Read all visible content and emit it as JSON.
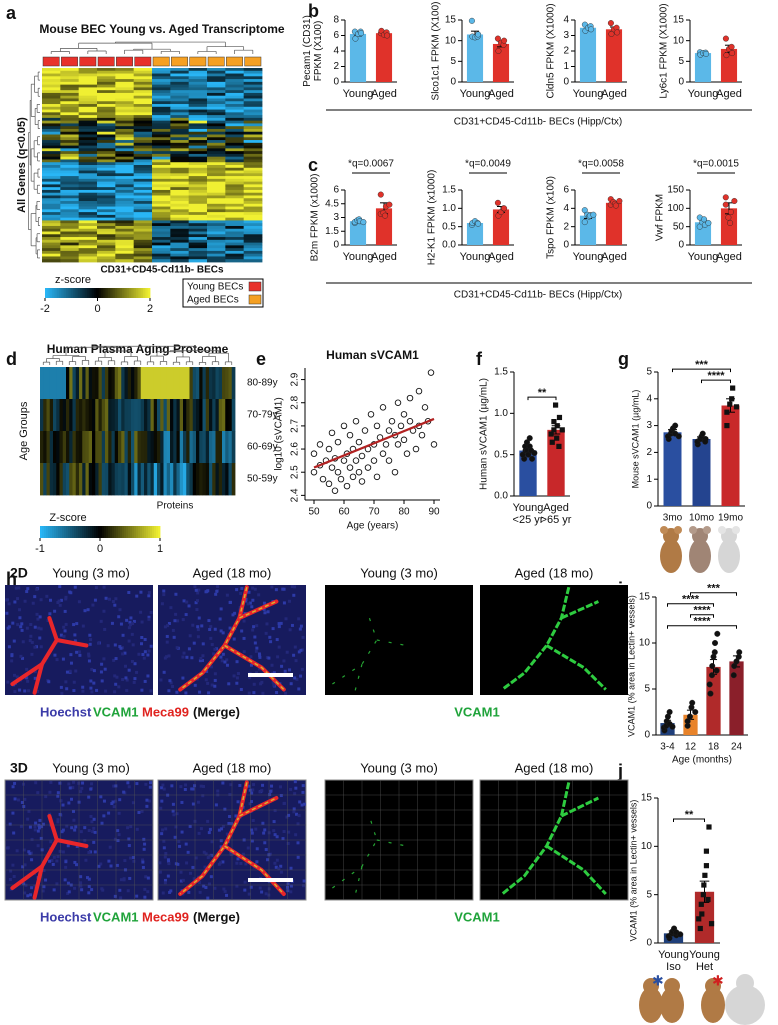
{
  "panel_labels": [
    "a",
    "b",
    "c",
    "d",
    "e",
    "f",
    "g",
    "h",
    "i",
    "j"
  ],
  "shared_xlabels": [
    "CD31+CD45-Cd11b- BECs (Hipp/Ctx)",
    "CD31+CD45-Cd11b- BECs (Hipp/Ctx)"
  ],
  "chart_data": [
    {
      "type": "heatmap",
      "title": "Mouse BEC Young vs. Aged Transcriptome",
      "ylabel": "All Genes (q<0.05)",
      "xlabel": "CD31+CD45-Cd11b- BECs",
      "colorbar_label": "z-score",
      "zlim": [
        -2,
        2
      ],
      "colorbar_ticks": [
        -2,
        0,
        2
      ],
      "colors": [
        "#29b6f6",
        "#000000",
        "#f0f032"
      ],
      "legend": [
        {
          "name": "Young BECs",
          "color": "#e8312a"
        },
        {
          "name": "Aged BECs",
          "color": "#f5a023"
        }
      ]
    },
    {
      "type": "bar",
      "ylabel": [
        "Pecam1 (CD31)",
        "FPKM (X100)"
      ],
      "categories": [
        "Young",
        "Aged"
      ],
      "colors": [
        "#5bb8e8",
        "#e0322a"
      ],
      "values": [
        6.2,
        6.3
      ],
      "errors": [
        0.25,
        0.2
      ],
      "points": [
        [
          6.5,
          5.6,
          6.2,
          6.5,
          6.3
        ],
        [
          6.3,
          6.6,
          6.1,
          6.4,
          6.0
        ]
      ],
      "ylim": [
        0,
        8
      ],
      "yticks": [
        0,
        2,
        4,
        6,
        8
      ]
    },
    {
      "type": "bar",
      "ylabel": "Slco1c1 FPKM (X100)",
      "categories": [
        "Young",
        "Aged"
      ],
      "colors": [
        "#5bb8e8",
        "#e0322a"
      ],
      "values": [
        11.5,
        9.2
      ],
      "errors": [
        0.8,
        0.7
      ],
      "points": [
        [
          14.8,
          11,
          10.8,
          11,
          11.5
        ],
        [
          10.5,
          7.5,
          9.5,
          9,
          10
        ]
      ],
      "ylim": [
        0,
        15
      ],
      "yticks": [
        0,
        5,
        10,
        15
      ]
    },
    {
      "type": "bar",
      "ylabel": "Cldn5 FPKM (X1000)",
      "categories": [
        "Young",
        "Aged"
      ],
      "colors": [
        "#5bb8e8",
        "#e0322a"
      ],
      "values": [
        3.5,
        3.4
      ],
      "errors": [
        0.12,
        0.15
      ],
      "points": [
        [
          3.7,
          3.3,
          3.5,
          3.6,
          3.4
        ],
        [
          3.8,
          3.1,
          3.4,
          3.5,
          3.2
        ]
      ],
      "ylim": [
        0,
        4
      ],
      "yticks": [
        0,
        1,
        2,
        3,
        4
      ]
    },
    {
      "type": "bar",
      "ylabel": "Ly6c1 FPKM (X1000)",
      "categories": [
        "Young",
        "Aged"
      ],
      "colors": [
        "#5bb8e8",
        "#e0322a"
      ],
      "values": [
        7,
        8
      ],
      "errors": [
        0.3,
        0.9
      ],
      "points": [
        [
          7.2,
          6.6,
          7,
          7.1,
          6.8
        ],
        [
          10.5,
          6.5,
          8,
          8.5,
          7
        ]
      ],
      "ylim": [
        0,
        15
      ],
      "yticks": [
        0,
        5,
        10,
        15
      ]
    },
    {
      "type": "bar",
      "ylabel": "B2m FPKM (x1000)",
      "annotation": "*q=0.0067",
      "categories": [
        "Young",
        "Aged"
      ],
      "colors": [
        "#5bb8e8",
        "#e0322a"
      ],
      "values": [
        2.6,
        4.0
      ],
      "errors": [
        0.15,
        0.6
      ],
      "points": [
        [
          2.4,
          2.5,
          2.7,
          2.8,
          2.6,
          2.5
        ],
        [
          5.5,
          3.4,
          3.5,
          3.2,
          4.2,
          4.4
        ]
      ],
      "ylim": [
        0,
        6
      ],
      "yticks": [
        0,
        1.5,
        3,
        4.5,
        6
      ]
    },
    {
      "type": "bar",
      "ylabel": "H2-K1 FPKM (x1000)",
      "annotation": "*q=0.0049",
      "categories": [
        "Young",
        "Aged"
      ],
      "colors": [
        "#5bb8e8",
        "#e0322a"
      ],
      "values": [
        0.6,
        0.97
      ],
      "errors": [
        0.03,
        0.08
      ],
      "points": [
        [
          0.55,
          0.6,
          0.65,
          0.6,
          0.58
        ],
        [
          1.15,
          0.8,
          0.9,
          1.0,
          1.0
        ]
      ],
      "ylim": [
        0,
        1.5
      ],
      "yticks": [
        {
          "value": 0,
          "label": "0.0"
        },
        {
          "value": 0.5,
          "label": "0.5"
        },
        {
          "value": 1,
          "label": "1.0"
        },
        {
          "value": 1.5,
          "label": "1.5"
        }
      ]
    },
    {
      "type": "bar",
      "ylabel": "Tspo FPKM (x100)",
      "annotation": "*q=0.0058",
      "categories": [
        "Young",
        "Aged"
      ],
      "colors": [
        "#5bb8e8",
        "#e0322a"
      ],
      "values": [
        3.2,
        4.6
      ],
      "errors": [
        0.3,
        0.15
      ],
      "points": [
        [
          3.8,
          2.5,
          3.3,
          3.1,
          3.2,
          3.3
        ],
        [
          5.0,
          4.4,
          4.7,
          4.5,
          4.3,
          4.8
        ]
      ],
      "ylim": [
        0,
        6
      ],
      "yticks": [
        0,
        2,
        4,
        6
      ]
    },
    {
      "type": "bar",
      "ylabel": "Vwf FPKM",
      "annotation": "*q=0.0015",
      "categories": [
        "Young",
        "Aged"
      ],
      "colors": [
        "#5bb8e8",
        "#e0322a"
      ],
      "values": [
        62,
        100
      ],
      "errors": [
        6,
        15
      ],
      "points": [
        [
          75,
          50,
          62,
          70,
          55,
          60
        ],
        [
          130,
          110,
          75,
          60,
          90,
          120
        ]
      ],
      "ylim": [
        0,
        150
      ],
      "yticks": [
        0,
        50,
        100,
        150
      ]
    },
    {
      "type": "heatmap",
      "title": "Human Plasma Aging Proteome",
      "ylabel": "Age Groups",
      "xlabel": "Proteins",
      "rows": [
        "80-89y",
        "70-79y",
        "60-69y",
        "50-59y"
      ],
      "colorbar_label": "Z-score",
      "zlim": [
        -1,
        1
      ],
      "colorbar_ticks": [
        -1,
        0,
        1
      ],
      "colors": [
        "#29b6f6",
        "#000000",
        "#f0f032"
      ]
    },
    {
      "type": "scatter",
      "title": "Human sVCAM1",
      "xlabel": "Age (years)",
      "ylabel": "log10 (sVCAM1)",
      "xlim": [
        47,
        92
      ],
      "xticks": [
        50,
        60,
        70,
        80,
        90
      ],
      "ylim": [
        2.38,
        2.95
      ],
      "yticks": [
        2.4,
        2.5,
        2.6,
        2.7,
        2.8,
        2.9
      ],
      "x": [
        50,
        50,
        52,
        52,
        53,
        54,
        55,
        55,
        56,
        56,
        57,
        57,
        58,
        58,
        59,
        60,
        60,
        61,
        61,
        62,
        62,
        63,
        63,
        64,
        64,
        65,
        65,
        66,
        66,
        67,
        68,
        68,
        69,
        70,
        70,
        71,
        71,
        72,
        73,
        73,
        74,
        75,
        75,
        76,
        77,
        77,
        78,
        78,
        79,
        80,
        80,
        81,
        82,
        82,
        83,
        84,
        85,
        85,
        86,
        87,
        88,
        89,
        90
      ],
      "y": [
        2.5,
        2.58,
        2.53,
        2.62,
        2.47,
        2.55,
        2.6,
        2.45,
        2.67,
        2.52,
        2.42,
        2.56,
        2.5,
        2.63,
        2.47,
        2.55,
        2.7,
        2.58,
        2.44,
        2.52,
        2.66,
        2.6,
        2.48,
        2.72,
        2.55,
        2.5,
        2.63,
        2.57,
        2.46,
        2.68,
        2.6,
        2.52,
        2.75,
        2.62,
        2.55,
        2.48,
        2.7,
        2.65,
        2.58,
        2.78,
        2.62,
        2.68,
        2.55,
        2.72,
        2.66,
        2.5,
        2.8,
        2.62,
        2.7,
        2.75,
        2.64,
        2.58,
        2.72,
        2.82,
        2.68,
        2.6,
        2.85,
        2.7,
        2.66,
        2.78,
        2.72,
        2.93,
        2.62
      ],
      "trend": {
        "x": [
          50,
          90
        ],
        "y": [
          2.52,
          2.73
        ],
        "color": "#b22222"
      }
    },
    {
      "type": "bar",
      "ylabel": "Human  sVCAM1 (µg/mL)",
      "categories": [
        "Young",
        "Aged"
      ],
      "subcategories": [
        "<25 yr",
        ">65 yr"
      ],
      "colors": [
        "#2a4fa0",
        "#c8282a"
      ],
      "point_color": "#111111",
      "markers": [
        "circle",
        "square"
      ],
      "values": [
        0.55,
        0.8
      ],
      "errors": [
        0.03,
        0.05
      ],
      "points": [
        [
          0.45,
          0.5,
          0.55,
          0.6,
          0.65,
          0.55,
          0.5,
          0.7,
          0.6,
          0.45,
          0.55,
          0.52
        ],
        [
          0.65,
          0.75,
          0.8,
          0.9,
          1.1,
          0.7,
          0.85,
          0.95,
          0.6,
          0.8
        ]
      ],
      "ylim": [
        0,
        1.5
      ],
      "yticks": [
        {
          "value": 0,
          "label": "0.0"
        },
        {
          "value": 0.5,
          "label": "0.5"
        },
        {
          "value": 1,
          "label": "1.0"
        },
        {
          "value": 1.5,
          "label": "1.5"
        }
      ],
      "comparisons": [
        {
          "label": "**"
        }
      ]
    },
    {
      "type": "bar",
      "ylabel": "Mouse  sVCAM1 (µg/mL)",
      "categories": [
        "3mo",
        "10mo",
        "19mo"
      ],
      "colors": [
        "#2a4fa0",
        "#24448f",
        "#c8282a"
      ],
      "point_color": "#111111",
      "markers": [
        "circle",
        "circle",
        "square"
      ],
      "values": [
        2.75,
        2.5,
        3.75
      ],
      "errors": [
        0.1,
        0.08,
        0.25
      ],
      "points": [
        [
          2.5,
          2.6,
          2.7,
          2.8,
          2.9,
          3.0,
          2.7,
          2.6
        ],
        [
          2.3,
          2.4,
          2.5,
          2.6,
          2.7,
          2.5,
          2.4
        ],
        [
          3.0,
          3.5,
          3.8,
          4.0,
          4.4,
          3.7
        ]
      ],
      "ylim": [
        0,
        5
      ],
      "yticks": [
        0,
        1,
        2,
        3,
        4,
        5
      ],
      "comparisons": [
        {
          "from": "10mo",
          "to": "19mo",
          "label": "****"
        },
        {
          "from": "3mo",
          "to": "19mo",
          "label": "***"
        }
      ]
    },
    {
      "type": "bar",
      "ylabel": "VCAM1 (% area in Lectin+ vessels)",
      "xlabel": "Age (months)",
      "categories": [
        "3-4",
        "12",
        "18",
        "24"
      ],
      "colors": [
        "#1f3f7a",
        "#e8832a",
        "#b02a2a",
        "#8a1f2a"
      ],
      "point_color": "#111111",
      "markers": [
        "circle",
        "circle",
        "circle",
        "circle"
      ],
      "values": [
        1.3,
        2.2,
        7.4,
        8.0
      ],
      "errors": [
        0.3,
        0.5,
        0.8,
        0.6
      ],
      "points": [
        [
          0.5,
          0.8,
          1.0,
          1.5,
          2.0,
          2.5,
          1.2,
          0.9
        ],
        [
          1.0,
          1.5,
          2.0,
          3.0,
          3.5,
          2.5
        ],
        [
          4.5,
          5.5,
          6.5,
          7.5,
          8.5,
          9.0,
          10.0,
          11.0,
          7.0
        ],
        [
          6.5,
          7.5,
          8.0,
          8.5,
          9.0
        ]
      ],
      "ylim": [
        0,
        15
      ],
      "yticks": [
        0,
        5,
        10,
        15
      ],
      "comparisons": [
        {
          "from": "3-4",
          "to": "24",
          "label": "****"
        },
        {
          "from": "12",
          "to": "18",
          "label": "****"
        },
        {
          "from": "3-4",
          "to": "18",
          "label": "****"
        },
        {
          "from": "12",
          "to": "24",
          "label": "***"
        }
      ]
    },
    {
      "type": "bar",
      "ylabel": "VCAM1 (% area in Lectin+ vessels)",
      "categories": [
        "Young",
        "Young"
      ],
      "subcategories": [
        "Iso",
        "Het"
      ],
      "colors": [
        "#1f3f7a",
        "#b02a2a"
      ],
      "point_color": "#111111",
      "markers": [
        "circle",
        "square"
      ],
      "values": [
        1.0,
        5.3
      ],
      "errors": [
        0.25,
        1.1
      ],
      "points": [
        [
          0.5,
          0.7,
          1.0,
          1.2,
          1.5,
          0.8,
          1.1,
          0.9
        ],
        [
          1.5,
          2.5,
          3.0,
          4.0,
          5.0,
          6.0,
          7.0,
          8.0,
          9.5,
          12.0,
          4.5,
          2.0
        ]
      ],
      "ylim": [
        0,
        15
      ],
      "yticks": [
        0,
        5,
        10,
        15
      ],
      "comparisons": [
        {
          "label": "**"
        }
      ]
    }
  ],
  "micrographs": {
    "rows": [
      {
        "label": "2D",
        "titles": [
          "Young (3 mo)",
          "Aged (18 mo)",
          "Young (3 mo)",
          "Aged (18 mo)"
        ]
      },
      {
        "label": "3D",
        "titles": [
          "Young (3 mo)",
          "Aged (18 mo)",
          "Young (3 mo)",
          "Aged (18 mo)"
        ]
      }
    ],
    "merge_caption": [
      {
        "text": "Hoechst",
        "color": "#3b3ba8"
      },
      {
        "text": "VCAM1",
        "color": "#1fa33a"
      },
      {
        "text": "Meca99",
        "color": "#e0231f"
      },
      {
        "text": "(Merge)",
        "color": "#111111"
      }
    ],
    "channel_caption": {
      "text": "VCAM1",
      "color": "#1fa33a"
    }
  }
}
